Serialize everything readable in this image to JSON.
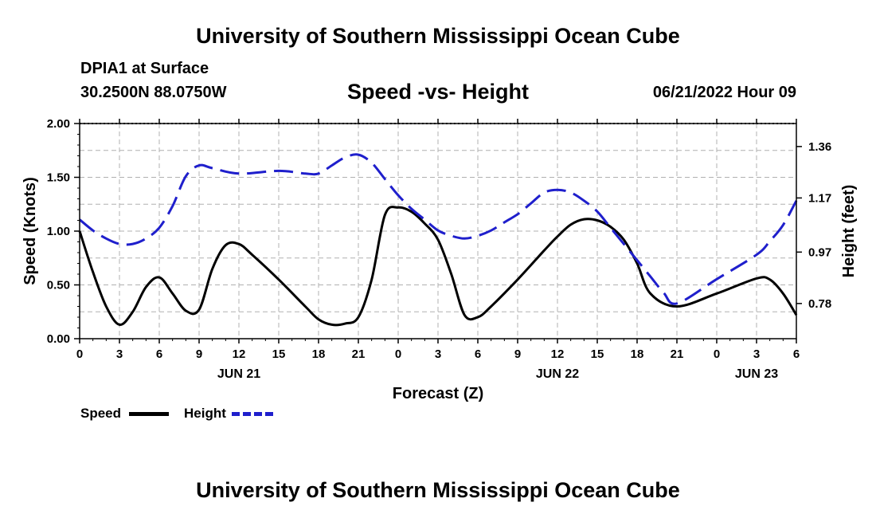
{
  "page": {
    "title": "University of Southern Mississippi Ocean Cube",
    "station": "DPIA1 at Surface",
    "coords": "30.2500N  88.0750W",
    "subtitle": "Speed -vs- Height",
    "datetime": "06/21/2022 Hour 09",
    "footer_title": "University of Southern Mississippi Ocean Cube"
  },
  "legend": {
    "speed_label": "Speed",
    "height_label": "Height"
  },
  "colors": {
    "speed": "#000000",
    "height": "#1f1fcc",
    "grid": "#b0b0b0"
  },
  "chart_data": {
    "type": "line",
    "title": "Speed -vs- Height",
    "xlabel": "Forecast (Z)",
    "ylabel": "Speed (Knots)",
    "y2label": "Height (feet)",
    "xlim": [
      0,
      54
    ],
    "ylim": [
      0,
      2.0
    ],
    "y2lim": [
      0.65,
      1.445
    ],
    "x_ticks": [
      0,
      3,
      6,
      9,
      12,
      15,
      18,
      21,
      24,
      27,
      30,
      33,
      36,
      39,
      42,
      45,
      48,
      51,
      54
    ],
    "x_tick_labels": [
      "0",
      "3",
      "6",
      "9",
      "12",
      "15",
      "18",
      "21",
      "0",
      "3",
      "6",
      "9",
      "12",
      "15",
      "18",
      "21",
      "0",
      "3",
      "6"
    ],
    "date_labels": [
      {
        "x": 12,
        "label": "JUN 21"
      },
      {
        "x": 36,
        "label": "JUN 22"
      },
      {
        "x": 51,
        "label": "JUN 23"
      }
    ],
    "y_ticks": [
      0,
      0.5,
      1.0,
      1.5,
      2.0
    ],
    "y_tick_labels": [
      "0.00",
      "0.50",
      "1.00",
      "1.50",
      "2.00"
    ],
    "y2_ticks": [
      0.78,
      0.97,
      1.17,
      1.36
    ],
    "y2_tick_labels": [
      "0.78",
      "0.97",
      "1.17",
      "1.36"
    ],
    "grid": true,
    "series": [
      {
        "name": "Speed",
        "axis": "left",
        "style": "solid",
        "x": [
          0,
          1,
          2,
          3,
          4,
          5,
          6,
          7,
          8,
          9,
          10,
          11,
          12,
          13,
          15,
          17,
          18,
          19,
          20,
          21,
          22,
          23,
          24,
          25,
          26,
          27,
          28,
          29,
          30,
          31,
          33,
          35,
          36,
          37,
          38,
          39,
          40,
          41,
          42,
          43,
          45,
          48,
          51,
          52,
          53,
          54
        ],
        "values": [
          1.0,
          0.62,
          0.3,
          0.13,
          0.25,
          0.48,
          0.57,
          0.42,
          0.26,
          0.27,
          0.65,
          0.87,
          0.88,
          0.78,
          0.55,
          0.3,
          0.18,
          0.13,
          0.14,
          0.2,
          0.55,
          1.15,
          1.22,
          1.18,
          1.07,
          0.92,
          0.6,
          0.22,
          0.2,
          0.3,
          0.55,
          0.82,
          0.95,
          1.06,
          1.11,
          1.1,
          1.04,
          0.92,
          0.7,
          0.42,
          0.3,
          0.42,
          0.56,
          0.55,
          0.42,
          0.22
        ]
      },
      {
        "name": "Height",
        "axis": "right",
        "style": "dashed",
        "x": [
          0,
          1,
          2,
          3,
          4,
          5,
          6,
          7,
          8,
          9,
          10,
          12,
          15,
          17,
          18,
          19,
          20,
          21,
          22,
          23,
          24,
          25,
          26,
          27,
          28,
          29,
          30,
          31,
          32,
          33,
          34,
          35,
          36,
          37,
          38,
          39,
          40,
          41,
          42,
          43,
          44,
          45,
          48,
          51,
          52,
          53,
          54
        ],
        "values": [
          1.09,
          1.05,
          1.02,
          1.0,
          1.0,
          1.02,
          1.06,
          1.14,
          1.25,
          1.29,
          1.28,
          1.26,
          1.27,
          1.26,
          1.26,
          1.29,
          1.32,
          1.33,
          1.3,
          1.24,
          1.18,
          1.13,
          1.09,
          1.05,
          1.03,
          1.02,
          1.03,
          1.05,
          1.08,
          1.11,
          1.15,
          1.19,
          1.2,
          1.19,
          1.16,
          1.12,
          1.06,
          1.0,
          0.94,
          0.88,
          0.82,
          0.78,
          0.87,
          0.96,
          1.01,
          1.07,
          1.16
        ]
      }
    ]
  }
}
